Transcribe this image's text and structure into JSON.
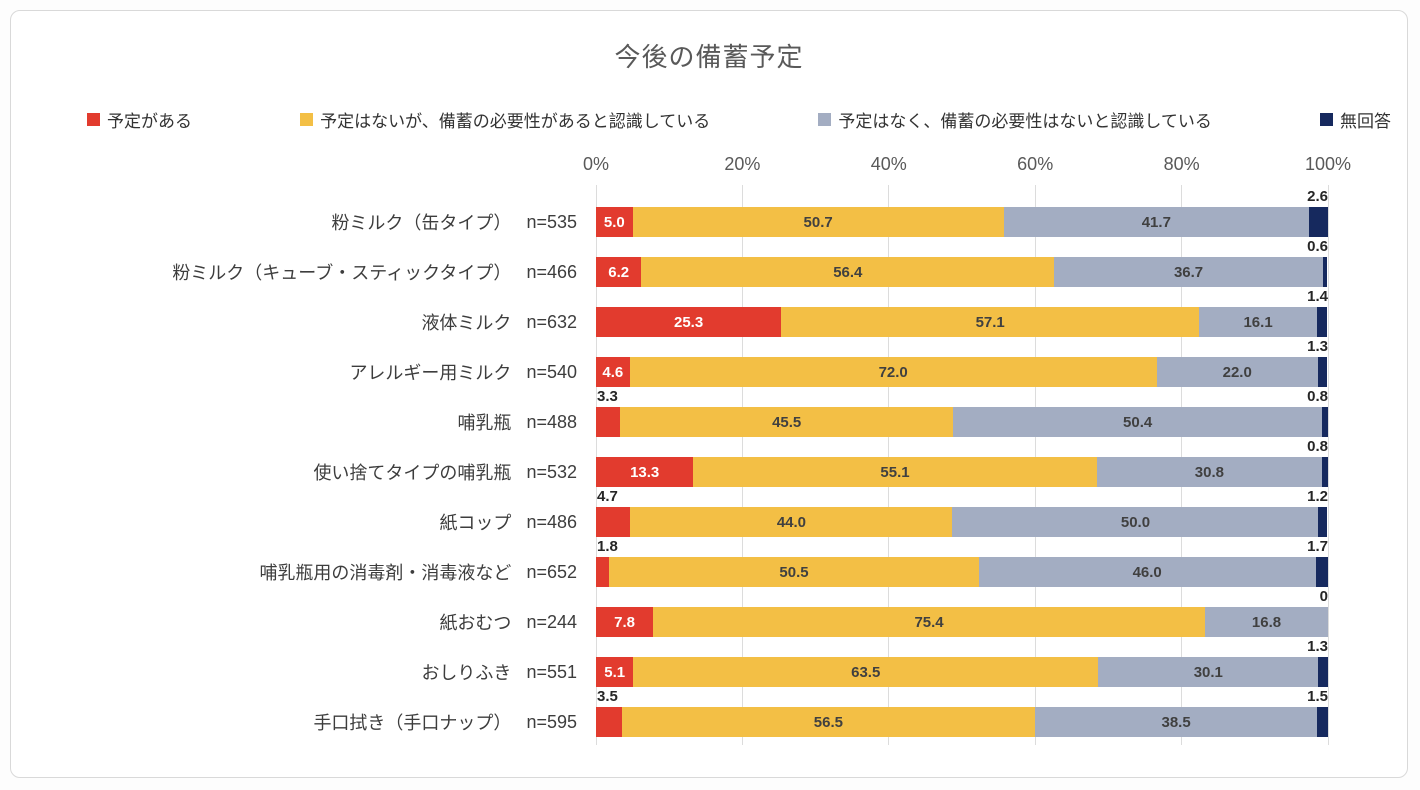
{
  "chart_data": {
    "type": "bar",
    "orientation": "horizontal-stacked",
    "title": "今後の備蓄予定",
    "xlabel": "",
    "ylabel": "",
    "xlim": [
      0,
      100
    ],
    "grid": true,
    "legend_position": "top",
    "x_ticks": [
      "0%",
      "20%",
      "40%",
      "60%",
      "80%",
      "100%"
    ],
    "series_keys": [
      "plans",
      "no-plans-need-recognized",
      "no-plans-no-need",
      "no-answer"
    ],
    "series": [
      {
        "name": "予定がある",
        "color": "#E23B2E",
        "label_color": "#ffffff"
      },
      {
        "name": "予定はないが、備蓄の必要性があると認識している",
        "color": "#F3BF45",
        "label_color": "#404040"
      },
      {
        "name": "予定はなく、備蓄の必要性はないと認識している",
        "color": "#A3ADC2",
        "label_color": "#404040"
      },
      {
        "name": "無回答",
        "color": "#16295E",
        "label_color": "#262626"
      }
    ],
    "rows": [
      {
        "category": "粉ミルク（缶タイプ）",
        "n": "n=535",
        "values": [
          5.0,
          50.7,
          41.7,
          2.6
        ],
        "labels": [
          "5.0",
          "50.7",
          "41.7",
          "2.6"
        ],
        "first_label_position": "inside"
      },
      {
        "category": "粉ミルク（キューブ・スティックタイプ）",
        "n": "n=466",
        "values": [
          6.2,
          56.4,
          36.7,
          0.6
        ],
        "labels": [
          "6.2",
          "56.4",
          "36.7",
          "0.6"
        ],
        "first_label_position": "inside"
      },
      {
        "category": "液体ミルク",
        "n": "n=632",
        "values": [
          25.3,
          57.1,
          16.1,
          1.4
        ],
        "labels": [
          "25.3",
          "57.1",
          "16.1",
          "1.4"
        ],
        "first_label_position": "inside"
      },
      {
        "category": "アレルギー用ミルク",
        "n": "n=540",
        "values": [
          4.6,
          72.0,
          22.0,
          1.3
        ],
        "labels": [
          "4.6",
          "72.0",
          "22.0",
          "1.3"
        ],
        "first_label_position": "inside"
      },
      {
        "category": "哺乳瓶",
        "n": "n=488",
        "values": [
          3.3,
          45.5,
          50.4,
          0.8
        ],
        "labels": [
          "3.3",
          "45.5",
          "50.4",
          "0.8"
        ],
        "first_label_position": "above"
      },
      {
        "category": "使い捨てタイプの哺乳瓶",
        "n": "n=532",
        "values": [
          13.3,
          55.1,
          30.8,
          0.8
        ],
        "labels": [
          "13.3",
          "55.1",
          "30.8",
          "0.8"
        ],
        "first_label_position": "inside"
      },
      {
        "category": "紙コップ",
        "n": "n=486",
        "values": [
          4.7,
          44.0,
          50.0,
          1.2
        ],
        "labels": [
          "4.7",
          "44.0",
          "50.0",
          "1.2"
        ],
        "first_label_position": "above"
      },
      {
        "category": "哺乳瓶用の消毒剤・消毒液など",
        "n": "n=652",
        "values": [
          1.8,
          50.5,
          46.0,
          1.7
        ],
        "labels": [
          "1.8",
          "50.5",
          "46.0",
          "1.7"
        ],
        "first_label_position": "above"
      },
      {
        "category": "紙おむつ",
        "n": "n=244",
        "values": [
          7.8,
          75.4,
          16.8,
          0
        ],
        "labels": [
          "7.8",
          "75.4",
          "16.8",
          "0"
        ],
        "first_label_position": "inside"
      },
      {
        "category": "おしりふき",
        "n": "n=551",
        "values": [
          5.1,
          63.5,
          30.1,
          1.3
        ],
        "labels": [
          "5.1",
          "63.5",
          "30.1",
          "1.3"
        ],
        "first_label_position": "inside"
      },
      {
        "category": "手口拭き（手口ナップ）",
        "n": "n=595",
        "values": [
          3.5,
          56.5,
          38.5,
          1.5
        ],
        "labels": [
          "3.5",
          "56.5",
          "38.5",
          "1.5"
        ],
        "first_label_position": "above"
      }
    ]
  }
}
